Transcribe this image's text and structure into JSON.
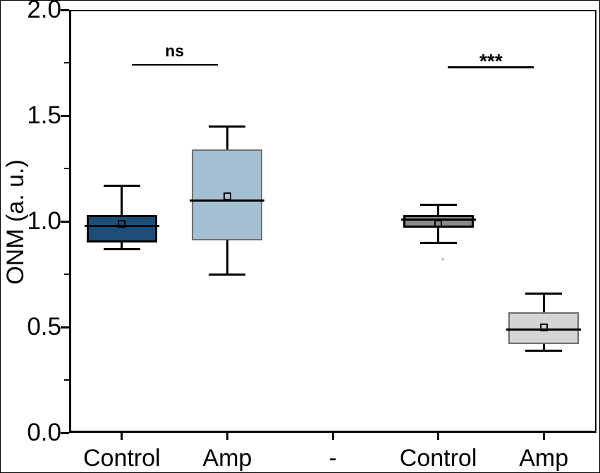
{
  "chart_data": {
    "type": "boxplot",
    "title": "",
    "ylabel": "ONM (a. u.)",
    "xlabel": "",
    "ylim": [
      0.0,
      2.0
    ],
    "y_major_ticks": [
      {
        "value": 0.0,
        "label": "0.0"
      },
      {
        "value": 0.5,
        "label": "0.5"
      },
      {
        "value": 1.0,
        "label": "1.0"
      },
      {
        "value": 1.5,
        "label": "1.5"
      },
      {
        "value": 2.0,
        "label": "2.0"
      }
    ],
    "y_minor_tick_values": [
      0.25,
      0.75,
      1.25,
      1.75
    ],
    "categories": [
      "Control",
      "Amp",
      "-",
      "Control",
      "Amp"
    ],
    "grid": false,
    "legend": null,
    "frame": true,
    "boxes": [
      {
        "category_index": 0,
        "category": "Control",
        "fill": "#1d4e77",
        "edge": "#000000",
        "whisker_low": 0.87,
        "q1": 0.9,
        "median": 0.98,
        "mean": 0.99,
        "q3": 1.03,
        "whisker_high": 1.17,
        "outliers": []
      },
      {
        "category_index": 1,
        "category": "Amp",
        "fill": "#a4bfd1",
        "edge": "#6e6e6e",
        "whisker_low": 0.75,
        "q1": 0.91,
        "median": 1.1,
        "mean": 1.12,
        "q3": 1.34,
        "whisker_high": 1.45,
        "outliers": []
      },
      {
        "category_index": 3,
        "category": "Control",
        "fill": "#8a8a8a",
        "edge": "#000000",
        "whisker_low": 0.9,
        "q1": 0.97,
        "median": 1.01,
        "mean": 0.99,
        "q3": 1.03,
        "whisker_high": 1.08,
        "outliers": [
          0.82
        ]
      },
      {
        "category_index": 4,
        "category": "Amp",
        "fill": "#d4d4d4",
        "edge": "#6e6e6e",
        "whisker_low": 0.39,
        "q1": 0.42,
        "median": 0.49,
        "mean": 0.5,
        "q3": 0.57,
        "whisker_high": 0.66,
        "outliers": []
      }
    ],
    "annotations": [
      {
        "label": "ns",
        "between_categories": [
          0,
          1
        ],
        "line_y": 1.74
      },
      {
        "label": "***",
        "between_categories": [
          3,
          4
        ],
        "line_y": 1.73
      }
    ]
  }
}
